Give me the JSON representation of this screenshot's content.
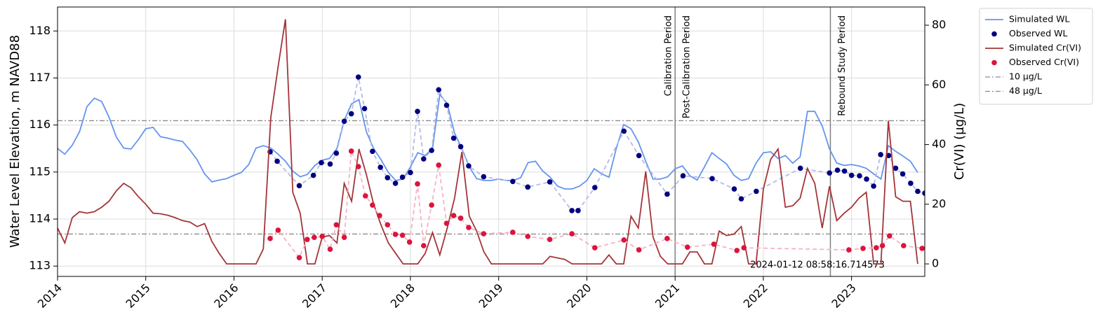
{
  "chart_data": {
    "type": "line",
    "y_label": "Water Level Elevation, m NAVD88",
    "y2_label": "Cr(VI) (µg/L)",
    "xlim": [
      2014,
      2023.83
    ],
    "ylim": [
      112.78,
      118.51
    ],
    "y2lim": [
      -4.2,
      86.1
    ],
    "xticks": [
      2014,
      2015,
      2016,
      2017,
      2018,
      2019,
      2020,
      2021,
      2022,
      2023
    ],
    "yticks": [
      113,
      114,
      115,
      116,
      117,
      118
    ],
    "y2ticks": [
      0,
      20,
      40,
      60,
      80
    ],
    "grid": true,
    "legend": "outside upper right",
    "x": [
      2014,
      2014.083,
      2014.167,
      2014.25,
      2014.333,
      2014.417,
      2014.5,
      2014.583,
      2014.667,
      2014.75,
      2014.833,
      2014.917,
      2015,
      2015.083,
      2015.167,
      2015.25,
      2015.333,
      2015.417,
      2015.5,
      2015.583,
      2015.667,
      2015.75,
      2015.833,
      2015.917,
      2016,
      2016.083,
      2016.167,
      2016.25,
      2016.333,
      2016.417,
      2016.5,
      2016.583,
      2016.667,
      2016.75,
      2016.833,
      2016.917,
      2017,
      2017.083,
      2017.167,
      2017.25,
      2017.333,
      2017.417,
      2017.5,
      2017.583,
      2017.667,
      2017.75,
      2017.833,
      2017.917,
      2018,
      2018.083,
      2018.167,
      2018.25,
      2018.333,
      2018.417,
      2018.5,
      2018.583,
      2018.667,
      2018.75,
      2018.833,
      2018.917,
      2019,
      2019.083,
      2019.167,
      2019.25,
      2019.333,
      2019.417,
      2019.5,
      2019.583,
      2019.667,
      2019.75,
      2019.833,
      2019.917,
      2020,
      2020.083,
      2020.167,
      2020.25,
      2020.333,
      2020.417,
      2020.5,
      2020.583,
      2020.667,
      2020.75,
      2020.833,
      2020.917,
      2021,
      2021.083,
      2021.167,
      2021.25,
      2021.333,
      2021.417,
      2021.5,
      2021.583,
      2021.667,
      2021.75,
      2021.833,
      2021.917,
      2022,
      2022.083,
      2022.167,
      2022.25,
      2022.333,
      2022.417,
      2022.5,
      2022.583,
      2022.667,
      2022.75,
      2022.833,
      2022.917,
      2023,
      2023.083,
      2023.167,
      2023.25,
      2023.333,
      2023.417,
      2023.5,
      2023.583,
      2023.667,
      2023.75
    ],
    "series": [
      {
        "name": "Simulated WL",
        "color": "#6495ed",
        "kind": "line",
        "axis": "y",
        "values": [
          115.5,
          115.38,
          115.57,
          115.86,
          116.39,
          116.57,
          116.5,
          116.17,
          115.74,
          115.51,
          115.49,
          115.69,
          115.92,
          115.95,
          115.75,
          115.72,
          115.68,
          115.65,
          115.47,
          115.26,
          114.96,
          114.79,
          114.83,
          114.86,
          114.93,
          114.99,
          115.16,
          115.51,
          115.56,
          115.51,
          115.38,
          115.23,
          115.02,
          114.9,
          114.95,
          115.14,
          115.25,
          115.29,
          115.5,
          116.1,
          116.45,
          116.54,
          115.86,
          115.5,
          115.26,
          114.99,
          114.82,
          114.85,
          115.11,
          115.41,
          115.35,
          115.5,
          116.65,
          116.45,
          115.83,
          115.5,
          115.11,
          114.86,
          114.82,
          114.82,
          114.85,
          114.82,
          114.82,
          114.88,
          115.2,
          115.23,
          115.02,
          114.89,
          114.7,
          114.64,
          114.64,
          114.7,
          114.82,
          115.07,
          114.96,
          114.89,
          115.5,
          116.01,
          115.92,
          115.64,
          115.23,
          114.85,
          114.85,
          114.9,
          115.07,
          115.13,
          114.92,
          114.83,
          115.11,
          115.41,
          115.29,
          115.17,
          114.93,
          114.82,
          114.86,
          115.19,
          115.41,
          115.43,
          115.29,
          115.35,
          115.19,
          115.32,
          116.29,
          116.29,
          115.98,
          115.49,
          115.19,
          115.14,
          115.16,
          115.13,
          115.08,
          114.96,
          114.85,
          115.56,
          115.44,
          115.34,
          115.23,
          114.99
        ]
      },
      {
        "name": "Observed WL",
        "color": "#000080",
        "kind": "scatter",
        "axis": "y",
        "dash_color": "#b4bae6",
        "x": [
          2016.41,
          2016.49,
          2016.74,
          2016.9,
          2016.99,
          2017.09,
          2017.16,
          2017.25,
          2017.33,
          2017.41,
          2017.48,
          2017.57,
          2017.66,
          2017.74,
          2017.83,
          2017.91,
          2018,
          2018.08,
          2018.15,
          2018.24,
          2018.32,
          2018.41,
          2018.49,
          2018.57,
          2018.66,
          2018.83,
          2019.16,
          2019.33,
          2019.58,
          2019.83,
          2019.9,
          2020.09,
          2020.42,
          2020.59,
          2020.91,
          2021.09,
          2021.42,
          2021.67,
          2021.75,
          2021.92,
          2022.42,
          2022.75,
          2022.84,
          2022.92,
          2023,
          2023.09,
          2023.17,
          2023.25,
          2023.33,
          2023.42,
          2023.5,
          2023.58,
          2023.67,
          2023.75,
          2023.83
        ],
        "values": [
          115.43,
          115.23,
          114.71,
          114.93,
          115.2,
          115.17,
          115.4,
          116.08,
          116.24,
          117.02,
          116.35,
          115.44,
          115.1,
          114.88,
          114.76,
          114.89,
          114.99,
          116.29,
          115.28,
          115.46,
          116.75,
          116.42,
          115.72,
          115.54,
          115.13,
          114.9,
          114.8,
          114.68,
          114.79,
          114.18,
          114.18,
          114.67,
          115.87,
          115.35,
          114.53,
          114.92,
          114.86,
          114.64,
          114.43,
          114.59,
          115.08,
          114.98,
          115.04,
          115.02,
          114.93,
          114.92,
          114.85,
          114.7,
          115.37,
          115.35,
          115.08,
          114.96,
          114.76,
          114.59,
          114.55
        ]
      },
      {
        "name": "Simulated Cr(VI)",
        "color": "#a4343a",
        "kind": "line",
        "axis": "y2",
        "values": [
          12,
          7,
          15.5,
          17.5,
          17,
          17.5,
          19,
          21,
          24.5,
          27,
          25.5,
          22.5,
          20,
          17,
          16.8,
          16.3,
          15.5,
          14.5,
          14,
          12.5,
          13.5,
          7.5,
          3.5,
          0,
          0,
          0,
          0,
          0,
          5,
          49,
          66,
          82,
          24,
          17,
          0,
          0,
          9,
          9.5,
          7,
          27,
          21,
          38.5,
          30,
          20,
          13,
          7,
          3.5,
          0,
          0,
          0,
          3.5,
          10.5,
          3,
          12,
          22,
          37.5,
          16,
          11,
          4,
          0,
          0,
          0,
          0,
          0,
          0,
          0,
          0,
          2.5,
          2,
          1.5,
          0,
          0,
          0,
          0,
          0,
          3,
          0,
          0,
          16,
          12,
          31,
          9,
          2.5,
          0,
          0,
          0,
          4,
          4,
          0,
          0,
          11,
          9.5,
          10,
          12.5,
          0,
          0,
          25,
          35,
          38.5,
          19,
          19.5,
          22,
          32,
          27,
          12,
          26,
          14.5,
          17,
          19,
          22,
          24,
          0,
          0,
          48,
          22.5,
          21,
          21,
          0
        ]
      },
      {
        "name": "Observed Cr(VI)",
        "color": "#dc143c",
        "kind": "scatter",
        "axis": "y2",
        "dash_color": "#f5b3c4",
        "x": [
          2016.41,
          2016.5,
          2016.74,
          2016.83,
          2016.91,
          2017,
          2017.09,
          2017.16,
          2017.25,
          2017.33,
          2017.41,
          2017.49,
          2017.57,
          2017.65,
          2017.74,
          2017.83,
          2017.91,
          2017.99,
          2018.08,
          2018.15,
          2018.24,
          2018.32,
          2018.41,
          2018.49,
          2018.57,
          2018.66,
          2018.83,
          2019.16,
          2019.33,
          2019.58,
          2019.83,
          2020.09,
          2020.42,
          2020.59,
          2020.91,
          2021.14,
          2021.44,
          2021.7,
          2021.78,
          2022.97,
          2023.13,
          2023.28,
          2023.35,
          2023.43,
          2023.59,
          2023.8
        ],
        "values": [
          8.5,
          11.3,
          2.1,
          8.2,
          8.9,
          9.2,
          4.9,
          13.1,
          8.9,
          37.8,
          32.6,
          22.8,
          19.7,
          16.2,
          13.1,
          9.9,
          9.6,
          7.3,
          26.8,
          6.1,
          19.7,
          33.1,
          13.6,
          16.2,
          15.3,
          12.2,
          10.1,
          10.6,
          9.2,
          8.2,
          10.1,
          5.4,
          8,
          4.7,
          8.5,
          5.6,
          6.6,
          4.5,
          5.4,
          4.7,
          5.2,
          5.4,
          6.1,
          9.4,
          6.1,
          5.2
        ]
      }
    ],
    "hlines": [
      {
        "name": "10 µg/L",
        "value": 10,
        "axis": "y2",
        "color": "#8c8c8c"
      },
      {
        "name": "48 µg/L",
        "value": 48,
        "axis": "y2",
        "color": "#8c8c8c"
      }
    ],
    "vlines": [
      2021,
      2022.76
    ],
    "annotations": [
      {
        "text": "Calibration Period",
        "x": 2021,
        "side": "left"
      },
      {
        "text": "Post-Calibration Period",
        "x": 2021,
        "side": "right"
      },
      {
        "text": "Rebound Study Period",
        "x": 2022.76,
        "side": "right"
      }
    ],
    "watermark": "2024-01-12 08:58:16.714573"
  }
}
